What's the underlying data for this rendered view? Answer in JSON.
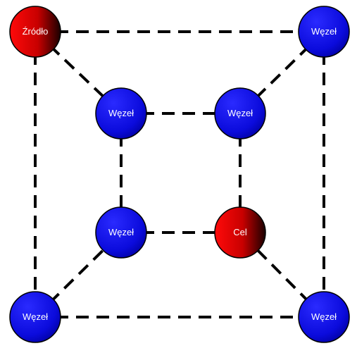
{
  "diagram": {
    "colors": {
      "source_node": "#d10000",
      "target_node": "#d10000",
      "regular_node": "#1414e0",
      "edge": "#000000",
      "label_text": "#ffffff"
    },
    "nodes": [
      {
        "id": "source",
        "label": "Źródło",
        "kind": "source"
      },
      {
        "id": "outer-top-right",
        "label": "Węzeł",
        "kind": "regular"
      },
      {
        "id": "inner-top-left",
        "label": "Węzeł",
        "kind": "regular"
      },
      {
        "id": "inner-top-right",
        "label": "Węzeł",
        "kind": "regular"
      },
      {
        "id": "inner-bottom-left",
        "label": "Węzeł",
        "kind": "regular"
      },
      {
        "id": "target",
        "label": "Cel",
        "kind": "target"
      },
      {
        "id": "outer-bottom-left",
        "label": "Węzeł",
        "kind": "regular"
      },
      {
        "id": "outer-bottom-right",
        "label": "Węzeł",
        "kind": "regular"
      }
    ],
    "edges": [
      {
        "from": "source",
        "to": "outer-top-right"
      },
      {
        "from": "source",
        "to": "outer-bottom-left"
      },
      {
        "from": "outer-top-right",
        "to": "outer-bottom-right"
      },
      {
        "from": "outer-bottom-left",
        "to": "outer-bottom-right"
      },
      {
        "from": "inner-top-left",
        "to": "inner-top-right"
      },
      {
        "from": "inner-top-left",
        "to": "inner-bottom-left"
      },
      {
        "from": "inner-top-right",
        "to": "target"
      },
      {
        "from": "inner-bottom-left",
        "to": "target"
      },
      {
        "from": "source",
        "to": "inner-top-left"
      },
      {
        "from": "outer-top-right",
        "to": "inner-top-right"
      },
      {
        "from": "outer-bottom-left",
        "to": "inner-bottom-left"
      },
      {
        "from": "outer-bottom-right",
        "to": "target"
      }
    ]
  }
}
